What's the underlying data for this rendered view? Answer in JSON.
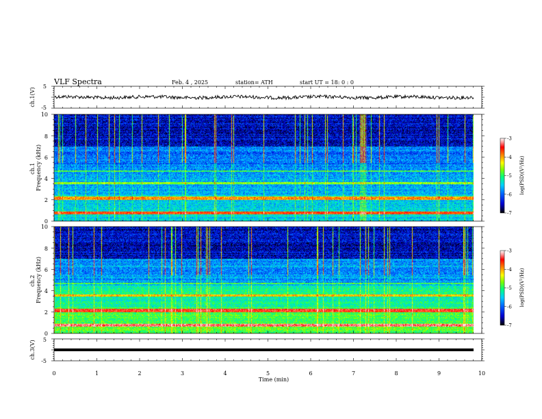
{
  "header": {
    "title": "VLF  Spectra",
    "date": "Feb. 4  , 2025",
    "station": "station= ATH",
    "start": "start  UT  =   18: 0   : 0"
  },
  "chart_data": [
    {
      "type": "line",
      "name": "ch1-waveform",
      "ylabel": "ch.1(V)",
      "ylim": [
        -5,
        5
      ],
      "yticks": [
        "5",
        "-5"
      ],
      "xlim": [
        0,
        10
      ]
    },
    {
      "type": "heatmap",
      "name": "ch1-spectrogram",
      "ylabel": "ch.1\nFrequency  (kHz)",
      "ylim": [
        0,
        10
      ],
      "yticks": [
        "0",
        "2",
        "4",
        "6",
        "8",
        "10"
      ],
      "xlim": [
        0,
        10
      ],
      "colorbar": {
        "label": "log(PSD)(V²/Hz)",
        "range": [
          -7,
          -3
        ],
        "ticks": [
          "-3",
          "-4",
          "-5",
          "-6",
          "-7"
        ]
      }
    },
    {
      "type": "heatmap",
      "name": "ch2-spectrogram",
      "ylabel": "ch.2\nFrequency  (kHz)",
      "ylim": [
        0,
        10
      ],
      "yticks": [
        "0",
        "2",
        "4",
        "6",
        "8",
        "10"
      ],
      "xlim": [
        0,
        10
      ],
      "colorbar": {
        "label": "log(PSD)(V²/Hz)",
        "range": [
          -7,
          -3
        ],
        "ticks": [
          "-3",
          "-4",
          "-5",
          "-6",
          "-7"
        ]
      }
    },
    {
      "type": "line",
      "name": "ch3-waveform",
      "ylabel": "ch.3(V)",
      "ylim": [
        -5,
        5
      ],
      "yticks": [
        "5",
        "-5"
      ],
      "xlim": [
        0,
        10
      ],
      "xlabel": "Time  (min)",
      "xticks": [
        "0",
        "1",
        "2",
        "3",
        "4",
        "5",
        "6",
        "7",
        "8",
        "9",
        "10"
      ]
    }
  ],
  "colors": {
    "colormap": [
      "#000000",
      "#0000d0",
      "#0060ff",
      "#00d0ff",
      "#00ff80",
      "#80ff00",
      "#ffff00",
      "#ff8000",
      "#ff0000",
      "#ffa0a0",
      "#ffffff"
    ]
  }
}
